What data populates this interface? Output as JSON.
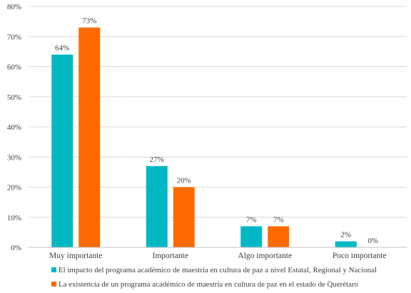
{
  "chart_data": {
    "type": "bar",
    "categories": [
      "Muy importante",
      "Importante",
      "Algo importante",
      "Poco importante"
    ],
    "series": [
      {
        "name": "El impacto del programa académico de maestría en cultura de paz a nivel Estatal, Regional y Nacional",
        "values": [
          64,
          27,
          7,
          2
        ],
        "color": "#00b8c4"
      },
      {
        "name": "La existencia de un programa académico de maestría en cultura de paz en el estado de Querétaro",
        "values": [
          73,
          20,
          7,
          0
        ],
        "color": "#ff6a00"
      }
    ],
    "data_labels": [
      [
        "64%",
        "27%",
        "7%",
        "2%"
      ],
      [
        "73%",
        "20%",
        "7%",
        "0%"
      ]
    ],
    "y_tick_labels": [
      "0%",
      "10%",
      "20%",
      "30%",
      "40%",
      "50%",
      "60%",
      "70%",
      "80%"
    ],
    "ylim": [
      0,
      80
    ],
    "title": "",
    "xlabel": "",
    "ylabel": "",
    "grid": true,
    "legend_position": "bottom"
  }
}
